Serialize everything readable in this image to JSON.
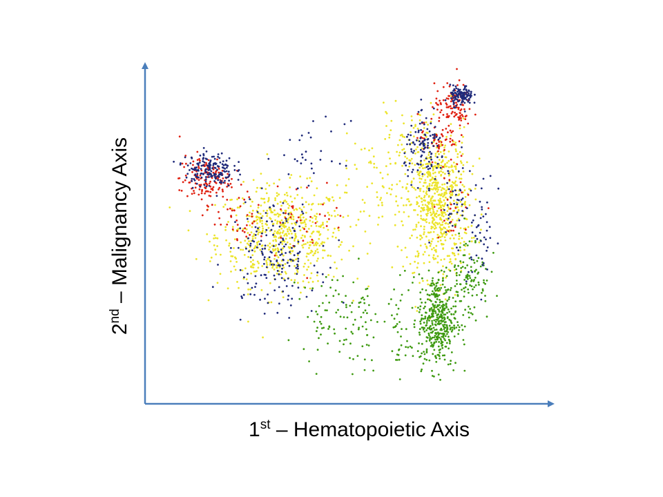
{
  "chart_data": {
    "type": "scatter",
    "title": "",
    "xlabel": {
      "prefix": "1",
      "sup": "st",
      "rest": " – Hematopoietic Axis"
    },
    "ylabel": {
      "prefix": "2",
      "sup": "nd",
      "rest": " – Malignancy Axis"
    },
    "x_ticks": false,
    "y_ticks": false,
    "grid": false,
    "legend": "none",
    "axis_color": "#4a7ebb",
    "xlim": [
      0,
      100
    ],
    "ylim": [
      0,
      100
    ],
    "series": [
      {
        "color": "#1f2a7a",
        "clusters": [
          {
            "x": 16,
            "y": 70,
            "sx": 3.0,
            "sy": 2.6,
            "n": 170
          },
          {
            "x": 79,
            "y": 92,
            "sx": 1.4,
            "sy": 1.5,
            "n": 120
          },
          {
            "x": 70,
            "y": 76,
            "sx": 2.6,
            "sy": 4.5,
            "n": 110
          },
          {
            "x": 32,
            "y": 44,
            "sx": 5.5,
            "sy": 8.0,
            "n": 170
          },
          {
            "x": 42,
            "y": 74,
            "sx": 4.0,
            "sy": 5.0,
            "n": 30
          },
          {
            "x": 84,
            "y": 52,
            "sx": 1.8,
            "sy": 9.0,
            "n": 45
          },
          {
            "x": 77,
            "y": 60,
            "sx": 2.5,
            "sy": 6.0,
            "n": 40
          }
        ]
      },
      {
        "color": "#e02010",
        "clusters": [
          {
            "x": 15,
            "y": 67,
            "sx": 3.2,
            "sy": 3.6,
            "n": 150
          },
          {
            "x": 77,
            "y": 89,
            "sx": 2.3,
            "sy": 3.2,
            "n": 110
          },
          {
            "x": 73,
            "y": 80,
            "sx": 2.5,
            "sy": 3.5,
            "n": 55
          },
          {
            "x": 24,
            "y": 55,
            "sx": 3.0,
            "sy": 3.0,
            "n": 35
          },
          {
            "x": 40,
            "y": 56,
            "sx": 5.0,
            "sy": 6.0,
            "n": 35
          },
          {
            "x": 78,
            "y": 60,
            "sx": 3.0,
            "sy": 6.0,
            "n": 25
          }
        ]
      },
      {
        "color": "#ece42a",
        "clusters": [
          {
            "x": 34,
            "y": 50,
            "sx": 8.0,
            "sy": 7.5,
            "n": 600
          },
          {
            "x": 73,
            "y": 60,
            "sx": 4.0,
            "sy": 11.0,
            "n": 700
          },
          {
            "x": 58,
            "y": 64,
            "sx": 7.0,
            "sy": 9.0,
            "n": 70
          },
          {
            "x": 64,
            "y": 80,
            "sx": 3.0,
            "sy": 4.0,
            "n": 40
          }
        ]
      },
      {
        "color": "#3e9a10",
        "clusters": [
          {
            "x": 73,
            "y": 25,
            "sx": 2.4,
            "sy": 7.0,
            "n": 420
          },
          {
            "x": 81,
            "y": 38,
            "sx": 2.5,
            "sy": 7.0,
            "n": 110
          },
          {
            "x": 47,
            "y": 27,
            "sx": 4.0,
            "sy": 6.0,
            "n": 75
          },
          {
            "x": 55,
            "y": 22,
            "sx": 1.6,
            "sy": 8.0,
            "n": 30
          },
          {
            "x": 63,
            "y": 22,
            "sx": 1.3,
            "sy": 8.0,
            "n": 35
          }
        ]
      }
    ]
  }
}
